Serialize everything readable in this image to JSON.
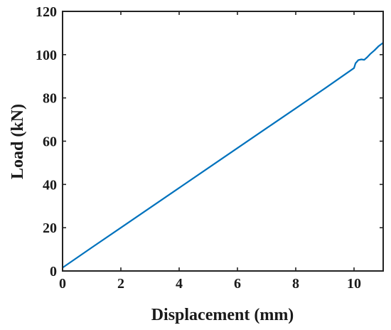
{
  "chart_data": {
    "type": "line",
    "title": "",
    "xlabel": "Displacement (mm)",
    "ylabel": "Load (kN)",
    "xlim": [
      0,
      11
    ],
    "ylim": [
      0,
      120
    ],
    "grid": false,
    "xticks": [
      0,
      2,
      4,
      6,
      8,
      10
    ],
    "yticks": [
      0,
      20,
      40,
      60,
      80,
      100,
      120
    ],
    "series": [
      {
        "color": "#0072BD",
        "x": [
          0,
          1,
          2,
          3,
          4,
          5,
          6,
          7,
          8,
          9,
          10,
          10.05,
          10.15,
          10.25,
          10.35,
          10.45,
          10.55,
          10.7,
          10.85,
          11.0
        ],
        "y": [
          1.5,
          10.8,
          20.0,
          29.2,
          38.4,
          47.6,
          56.8,
          66.0,
          75.2,
          84.4,
          93.8,
          96.0,
          97.5,
          97.8,
          97.6,
          98.8,
          100.2,
          102.0,
          104.0,
          105.5
        ]
      }
    ]
  }
}
